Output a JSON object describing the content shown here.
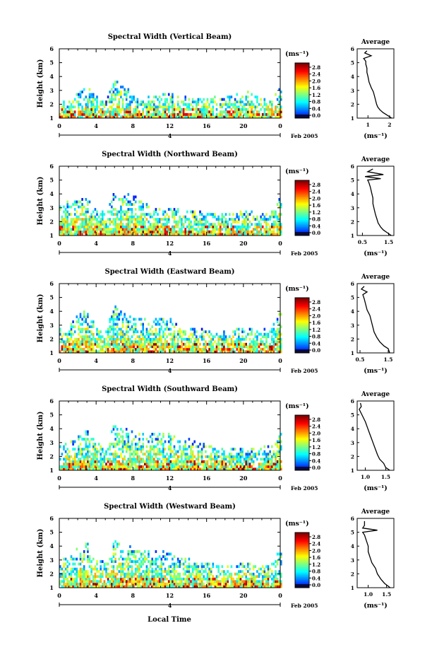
{
  "figure": {
    "xlabel": "Local Time",
    "date_label": "Feb 2005",
    "colorbar_unit": "(ms⁻¹)",
    "avg_title": "Average",
    "avg_xlabel": "(ms⁻¹)",
    "ylabel": "Height (km)"
  },
  "chart_data": [
    {
      "type": "heatmap",
      "title": "Spectral Width (Vertical Beam)",
      "xlabel": "Local Time",
      "ylabel": "Height (km)",
      "x_ticks": [
        "0",
        "4",
        "8",
        "12",
        "16",
        "20",
        "0"
      ],
      "xlim": [
        0,
        24
      ],
      "y_ticks": [
        "1",
        "2",
        "3",
        "4",
        "5",
        "6"
      ],
      "ylim": [
        1,
        6
      ],
      "subaxis_tick": "4",
      "date_label": "Feb 2005",
      "colorbar": {
        "unit": "(ms⁻¹)",
        "ticks": [
          "0.0",
          "0.4",
          "0.8",
          "1.2",
          "1.6",
          "2.0",
          "2.4",
          "2.8"
        ],
        "range": [
          0,
          2.8
        ]
      },
      "coverage": [
        [
          0,
          2.0
        ],
        [
          1,
          2.2
        ],
        [
          2,
          2.8
        ],
        [
          3,
          3.2
        ],
        [
          4,
          2.6
        ],
        [
          5,
          2.0
        ],
        [
          6,
          3.8
        ],
        [
          7,
          3.4
        ],
        [
          8,
          2.6
        ],
        [
          9,
          2.4
        ],
        [
          10,
          2.6
        ],
        [
          11,
          2.6
        ],
        [
          12,
          2.8
        ],
        [
          13,
          2.6
        ],
        [
          14,
          2.6
        ],
        [
          15,
          2.6
        ],
        [
          16,
          2.6
        ],
        [
          17,
          2.5
        ],
        [
          18,
          2.4
        ],
        [
          19,
          2.6
        ],
        [
          20,
          3.0
        ],
        [
          21,
          2.6
        ],
        [
          22,
          2.4
        ],
        [
          23,
          2.4
        ],
        [
          24,
          3.2
        ]
      ],
      "average_profile": {
        "title": "Average",
        "xlabel": "(ms⁻¹)",
        "x_ticks": [
          "1",
          "2"
        ],
        "xlim": [
          0.5,
          2.2
        ],
        "points": [
          [
            2.1,
            1.0
          ],
          [
            1.9,
            1.2
          ],
          [
            1.7,
            1.4
          ],
          [
            1.55,
            1.6
          ],
          [
            1.45,
            1.8
          ],
          [
            1.4,
            2.0
          ],
          [
            1.35,
            2.3
          ],
          [
            1.3,
            2.6
          ],
          [
            1.25,
            2.9
          ],
          [
            1.15,
            3.2
          ],
          [
            1.05,
            3.6
          ],
          [
            1.0,
            4.0
          ],
          [
            0.95,
            4.3
          ],
          [
            0.95,
            4.6
          ],
          [
            0.9,
            4.9
          ],
          [
            0.9,
            5.1
          ],
          [
            0.8,
            5.3
          ],
          [
            1.15,
            5.5
          ],
          [
            0.85,
            5.7
          ],
          [
            0.95,
            5.85
          ]
        ]
      }
    },
    {
      "type": "heatmap",
      "title": "Spectral Width (Northward Beam)",
      "xlabel": "Local Time",
      "ylabel": "Height (km)",
      "x_ticks": [
        "0",
        "4",
        "8",
        "12",
        "16",
        "20",
        "0"
      ],
      "xlim": [
        0,
        24
      ],
      "y_ticks": [
        "1",
        "2",
        "3",
        "4",
        "5",
        "6"
      ],
      "ylim": [
        1,
        6
      ],
      "subaxis_tick": "4",
      "date_label": "Feb 2005",
      "colorbar": {
        "unit": "(ms⁻¹)",
        "ticks": [
          "0.0",
          "0.4",
          "0.8",
          "1.2",
          "1.6",
          "2.0",
          "2.4",
          "2.8"
        ],
        "range": [
          0,
          2.8
        ]
      },
      "coverage": [
        [
          0,
          3.0
        ],
        [
          1,
          3.4
        ],
        [
          2,
          3.8
        ],
        [
          3,
          3.6
        ],
        [
          4,
          3.0
        ],
        [
          5,
          2.6
        ],
        [
          6,
          4.2
        ],
        [
          7,
          3.8
        ],
        [
          8,
          4.0
        ],
        [
          9,
          3.6
        ],
        [
          10,
          3.0
        ],
        [
          11,
          2.8
        ],
        [
          12,
          3.0
        ],
        [
          13,
          2.8
        ],
        [
          14,
          2.8
        ],
        [
          15,
          2.8
        ],
        [
          16,
          2.6
        ],
        [
          17,
          2.6
        ],
        [
          18,
          2.6
        ],
        [
          19,
          2.6
        ],
        [
          20,
          2.8
        ],
        [
          21,
          2.6
        ],
        [
          22,
          2.6
        ],
        [
          23,
          2.6
        ],
        [
          24,
          3.8
        ]
      ],
      "average_profile": {
        "title": "Average",
        "xlabel": "(ms⁻¹)",
        "x_ticks": [
          "0.5",
          "1.5"
        ],
        "xlim": [
          0.3,
          1.7
        ],
        "points": [
          [
            1.6,
            1.0
          ],
          [
            1.45,
            1.2
          ],
          [
            1.3,
            1.4
          ],
          [
            1.2,
            1.6
          ],
          [
            1.1,
            1.9
          ],
          [
            1.05,
            2.2
          ],
          [
            1.0,
            2.5
          ],
          [
            0.95,
            2.9
          ],
          [
            0.9,
            3.3
          ],
          [
            0.9,
            3.7
          ],
          [
            0.85,
            4.1
          ],
          [
            0.8,
            4.5
          ],
          [
            0.75,
            4.8
          ],
          [
            0.7,
            5.0
          ],
          [
            1.2,
            5.1
          ],
          [
            0.6,
            5.25
          ],
          [
            1.3,
            5.4
          ],
          [
            0.7,
            5.6
          ],
          [
            0.9,
            5.8
          ]
        ]
      }
    },
    {
      "type": "heatmap",
      "title": "Spectral Width (Eastward Beam)",
      "xlabel": "Local Time",
      "ylabel": "Height (km)",
      "x_ticks": [
        "0",
        "4",
        "8",
        "12",
        "16",
        "20",
        "0"
      ],
      "xlim": [
        0,
        24
      ],
      "y_ticks": [
        "1",
        "2",
        "3",
        "4",
        "5",
        "6"
      ],
      "ylim": [
        1,
        6
      ],
      "subaxis_tick": "4",
      "date_label": "Feb 2005",
      "colorbar": {
        "unit": "(ms⁻¹)",
        "ticks": [
          "0.0",
          "0.4",
          "0.8",
          "1.2",
          "1.6",
          "2.0",
          "2.4",
          "2.8"
        ],
        "range": [
          0,
          2.8
        ]
      },
      "coverage": [
        [
          0,
          2.6
        ],
        [
          1,
          3.0
        ],
        [
          2,
          3.6
        ],
        [
          3,
          4.2
        ],
        [
          4,
          3.0
        ],
        [
          5,
          2.6
        ],
        [
          6,
          4.4
        ],
        [
          7,
          3.8
        ],
        [
          8,
          3.6
        ],
        [
          9,
          3.6
        ],
        [
          10,
          3.4
        ],
        [
          11,
          3.6
        ],
        [
          12,
          3.4
        ],
        [
          13,
          3.0
        ],
        [
          14,
          2.8
        ],
        [
          15,
          2.8
        ],
        [
          16,
          2.6
        ],
        [
          17,
          2.6
        ],
        [
          18,
          2.6
        ],
        [
          19,
          2.8
        ],
        [
          20,
          2.8
        ],
        [
          21,
          2.6
        ],
        [
          22,
          2.6
        ],
        [
          23,
          2.8
        ],
        [
          24,
          4.0
        ]
      ],
      "average_profile": {
        "title": "Average",
        "xlabel": "(ms⁻¹)",
        "x_ticks": [
          "0.5",
          "1.5"
        ],
        "xlim": [
          0.4,
          1.7
        ],
        "points": [
          [
            1.55,
            1.0
          ],
          [
            1.5,
            1.3
          ],
          [
            1.35,
            1.5
          ],
          [
            1.2,
            1.8
          ],
          [
            1.1,
            2.1
          ],
          [
            1.0,
            2.5
          ],
          [
            0.95,
            2.9
          ],
          [
            0.9,
            3.3
          ],
          [
            0.85,
            3.7
          ],
          [
            0.75,
            4.1
          ],
          [
            0.7,
            4.5
          ],
          [
            0.65,
            4.9
          ],
          [
            0.6,
            5.2
          ],
          [
            0.75,
            5.4
          ],
          [
            0.55,
            5.6
          ],
          [
            0.65,
            5.8
          ]
        ]
      }
    },
    {
      "type": "heatmap",
      "title": "Spectral Width (Southward Beam)",
      "xlabel": "Local Time",
      "ylabel": "Height (km)",
      "x_ticks": [
        "0",
        "4",
        "8",
        "12",
        "16",
        "20",
        "0"
      ],
      "xlim": [
        0,
        24
      ],
      "y_ticks": [
        "1",
        "2",
        "3",
        "4",
        "5",
        "6"
      ],
      "ylim": [
        1,
        6
      ],
      "subaxis_tick": "4",
      "date_label": "Feb 2005",
      "colorbar": {
        "unit": "(ms⁻¹)",
        "ticks": [
          "0.0",
          "0.4",
          "0.8",
          "1.2",
          "1.6",
          "2.0",
          "2.4",
          "2.8"
        ],
        "range": [
          0,
          2.8
        ]
      },
      "coverage": [
        [
          0,
          2.6
        ],
        [
          1,
          3.0
        ],
        [
          2,
          3.4
        ],
        [
          3,
          3.8
        ],
        [
          4,
          3.0
        ],
        [
          5,
          2.8
        ],
        [
          6,
          4.2
        ],
        [
          7,
          4.0
        ],
        [
          8,
          3.8
        ],
        [
          9,
          3.6
        ],
        [
          10,
          3.6
        ],
        [
          11,
          3.6
        ],
        [
          12,
          3.6
        ],
        [
          13,
          3.4
        ],
        [
          14,
          3.2
        ],
        [
          15,
          3.0
        ],
        [
          16,
          2.8
        ],
        [
          17,
          2.6
        ],
        [
          18,
          2.6
        ],
        [
          19,
          2.6
        ],
        [
          20,
          2.6
        ],
        [
          21,
          2.6
        ],
        [
          22,
          2.6
        ],
        [
          23,
          2.8
        ],
        [
          24,
          3.8
        ]
      ],
      "average_profile": {
        "title": "Average",
        "xlabel": "(ms⁻¹)",
        "x_ticks": [
          "1.0",
          "1.5"
        ],
        "xlim": [
          0.8,
          1.7
        ],
        "points": [
          [
            1.6,
            1.0
          ],
          [
            1.5,
            1.2
          ],
          [
            1.45,
            1.5
          ],
          [
            1.35,
            1.8
          ],
          [
            1.3,
            2.1
          ],
          [
            1.25,
            2.5
          ],
          [
            1.2,
            2.9
          ],
          [
            1.15,
            3.3
          ],
          [
            1.1,
            3.7
          ],
          [
            1.05,
            4.1
          ],
          [
            1.0,
            4.5
          ],
          [
            0.95,
            4.8
          ],
          [
            0.9,
            5.1
          ],
          [
            0.85,
            5.4
          ],
          [
            0.9,
            5.6
          ],
          [
            0.88,
            5.85
          ]
        ]
      }
    },
    {
      "type": "heatmap",
      "title": "Spectral Width (Westward Beam)",
      "xlabel": "Local Time",
      "ylabel": "Height (km)",
      "x_ticks": [
        "0",
        "4",
        "8",
        "12",
        "16",
        "20",
        "0"
      ],
      "xlim": [
        0,
        24
      ],
      "y_ticks": [
        "1",
        "2",
        "3",
        "4",
        "5",
        "6"
      ],
      "ylim": [
        1,
        6
      ],
      "subaxis_tick": "4",
      "date_label": "Feb 2005",
      "colorbar": {
        "unit": "(ms⁻¹)",
        "ticks": [
          "0.0",
          "0.4",
          "0.8",
          "1.2",
          "1.6",
          "2.0",
          "2.4",
          "2.8"
        ],
        "range": [
          0,
          2.8
        ]
      },
      "coverage": [
        [
          0,
          2.8
        ],
        [
          1,
          3.4
        ],
        [
          2,
          3.8
        ],
        [
          3,
          4.2
        ],
        [
          4,
          3.2
        ],
        [
          5,
          2.8
        ],
        [
          6,
          4.4
        ],
        [
          7,
          3.8
        ],
        [
          8,
          4.0
        ],
        [
          9,
          3.8
        ],
        [
          10,
          3.6
        ],
        [
          11,
          3.6
        ],
        [
          12,
          3.4
        ],
        [
          13,
          3.0
        ],
        [
          14,
          3.0
        ],
        [
          15,
          2.8
        ],
        [
          16,
          2.8
        ],
        [
          17,
          2.6
        ],
        [
          18,
          2.6
        ],
        [
          19,
          2.8
        ],
        [
          20,
          2.8
        ],
        [
          21,
          2.6
        ],
        [
          22,
          2.6
        ],
        [
          23,
          2.8
        ],
        [
          24,
          3.6
        ]
      ],
      "average_profile": {
        "title": "Average",
        "xlabel": "(ms⁻¹)",
        "x_ticks": [
          "1.0",
          "1.5"
        ],
        "xlim": [
          0.7,
          1.7
        ],
        "points": [
          [
            1.6,
            1.0
          ],
          [
            1.45,
            1.3
          ],
          [
            1.35,
            1.6
          ],
          [
            1.25,
            2.0
          ],
          [
            1.2,
            2.4
          ],
          [
            1.1,
            2.8
          ],
          [
            1.05,
            3.2
          ],
          [
            1.0,
            3.6
          ],
          [
            1.0,
            4.0
          ],
          [
            0.95,
            4.4
          ],
          [
            0.9,
            4.8
          ],
          [
            0.85,
            5.0
          ],
          [
            1.25,
            5.15
          ],
          [
            0.85,
            5.3
          ],
          [
            0.9,
            5.5
          ],
          [
            0.9,
            5.8
          ]
        ]
      }
    }
  ]
}
